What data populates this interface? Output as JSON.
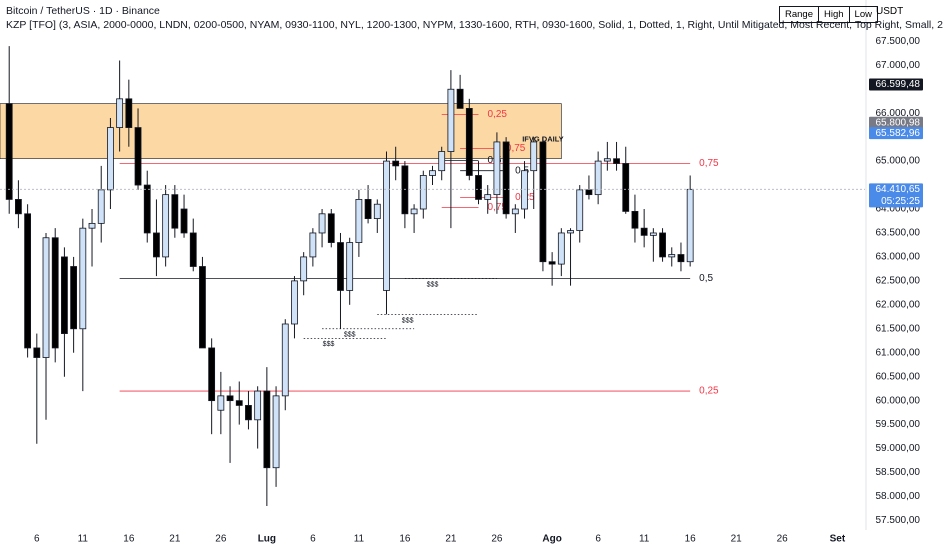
{
  "chart_data": {
    "type": "candlestick",
    "title": "Bitcoin / TetherUS · 1D · Binance",
    "subtitle": "KZP [TFO] (3, ASIA, 2000-0000, LNDN, 0200-0500, NYAM, 0930-1100, NYL, 1200-1300, NYPM, 1330-1600, RTH, 0930-1600, Solid, 1, Dotted, 1, Right, Until Mitigated, Most Recent, Top Right, Small, 2",
    "controls": [
      "Range",
      "High",
      "Low"
    ],
    "currency": "USDT",
    "bull_color": "#cfe2f8",
    "bear_color": "#000000",
    "x": [
      "06-03",
      "06-04",
      "06-05",
      "06-06",
      "06-07",
      "06-08",
      "06-09",
      "06-10",
      "06-11",
      "06-12",
      "06-13",
      "06-14",
      "06-15",
      "06-16",
      "06-17",
      "06-18",
      "06-19",
      "06-20",
      "06-21",
      "06-22",
      "06-23",
      "06-24",
      "06-25",
      "06-26",
      "06-27",
      "06-28",
      "06-29",
      "06-30",
      "07-01",
      "07-02",
      "07-03",
      "07-04",
      "07-05",
      "07-06",
      "07-07",
      "07-08",
      "07-09",
      "07-10",
      "07-11",
      "07-12",
      "07-13",
      "07-14",
      "07-15",
      "07-16",
      "07-17",
      "07-18",
      "07-19",
      "07-20",
      "07-21",
      "07-22",
      "07-23",
      "07-24",
      "07-25",
      "07-26",
      "07-27",
      "07-28",
      "07-29",
      "07-30",
      "07-31",
      "08-01",
      "08-02",
      "08-03",
      "08-04",
      "08-05",
      "08-06",
      "08-07",
      "08-08",
      "08-09",
      "08-10",
      "08-11",
      "08-12",
      "08-13",
      "08-14",
      "08-15",
      "08-16"
    ],
    "open": [
      66200,
      64200,
      63900,
      61100,
      60900,
      63400,
      63000,
      62800,
      61500,
      63600,
      63700,
      64400,
      65700,
      66300,
      65700,
      64500,
      63500,
      63000,
      64300,
      64000,
      63500,
      62800,
      61100,
      59800,
      60100,
      60000,
      59900,
      59600,
      60200,
      58600,
      60100,
      61600,
      62500,
      63000,
      63500,
      63900,
      63300,
      62300,
      63300,
      64200,
      63800,
      62300,
      65000,
      64900,
      63900,
      64000,
      64700,
      64800,
      65200,
      66500,
      66100,
      64700,
      64200,
      64300,
      65400,
      63900,
      64000,
      64800,
      65400,
      62900,
      62850,
      63500,
      63550,
      64400,
      64300,
      65000,
      65050,
      64950,
      63950,
      63600,
      63450,
      63500,
      63000,
      63050,
      62900
    ],
    "high": [
      67400,
      64600,
      64100,
      61400,
      63500,
      63600,
      63200,
      63000,
      63800,
      64000,
      64900,
      65900,
      67100,
      66700,
      66100,
      64800,
      64200,
      64500,
      64500,
      64300,
      63800,
      63000,
      61300,
      60600,
      60300,
      60400,
      60200,
      60300,
      60700,
      60300,
      61700,
      62600,
      63100,
      63600,
      64000,
      64000,
      63500,
      63400,
      64400,
      64500,
      64200,
      65200,
      65300,
      65000,
      64100,
      64800,
      64900,
      65300,
      66900,
      66800,
      66300,
      65000,
      64500,
      65600,
      65500,
      64100,
      65000,
      65500,
      65500,
      63100,
      63600,
      63600,
      64500,
      64700,
      65200,
      65400,
      65400,
      65300,
      64300,
      64000,
      63600,
      63600,
      63200,
      63300,
      64700
    ],
    "low": [
      63900,
      63600,
      60900,
      59100,
      59600,
      60800,
      60500,
      61000,
      60200,
      62800,
      63300,
      64000,
      65200,
      65300,
      64400,
      63300,
      62600,
      62800,
      63400,
      63400,
      62700,
      61100,
      59300,
      59300,
      58700,
      59500,
      59400,
      59000,
      57800,
      58200,
      59800,
      61300,
      62200,
      62800,
      63200,
      63200,
      61500,
      62000,
      63000,
      63700,
      63500,
      61800,
      64600,
      63600,
      63500,
      63800,
      64500,
      64600,
      63600,
      66100,
      64600,
      64100,
      63900,
      63900,
      63800,
      63500,
      63800,
      64000,
      62700,
      62400,
      62600,
      62400,
      63300,
      64200,
      64100,
      64800,
      64800,
      63900,
      63300,
      63200,
      62900,
      62900,
      62800,
      62700,
      62800
    ],
    "close": [
      64200,
      63900,
      61100,
      60900,
      63400,
      61100,
      61400,
      61500,
      63600,
      63700,
      64400,
      65700,
      66300,
      65700,
      64500,
      63500,
      63000,
      64300,
      63600,
      63500,
      62800,
      61100,
      60000,
      60100,
      60000,
      59900,
      59600,
      60200,
      58600,
      60100,
      61600,
      62500,
      63000,
      63500,
      63900,
      63300,
      62300,
      63300,
      64200,
      63800,
      64100,
      65000,
      64900,
      63900,
      64000,
      64700,
      64800,
      65200,
      66500,
      66100,
      64700,
      64200,
      64300,
      65400,
      63900,
      64000,
      64800,
      65400,
      62900,
      62850,
      63500,
      63550,
      64400,
      64300,
      65000,
      65050,
      64950,
      63950,
      63600,
      63450,
      63500,
      63000,
      63050,
      62900,
      64410.65
    ],
    "xlim": [
      "06-02",
      "09-04"
    ],
    "xticks": [
      {
        "value": "06-06",
        "label": "6"
      },
      {
        "value": "06-11",
        "label": "11"
      },
      {
        "value": "06-16",
        "label": "16"
      },
      {
        "value": "06-21",
        "label": "21"
      },
      {
        "value": "06-26",
        "label": "26"
      },
      {
        "value": "07-01",
        "label": "Lug"
      },
      {
        "value": "07-06",
        "label": "6"
      },
      {
        "value": "07-11",
        "label": "11"
      },
      {
        "value": "07-16",
        "label": "16"
      },
      {
        "value": "07-21",
        "label": "21"
      },
      {
        "value": "07-26",
        "label": "26"
      },
      {
        "value": "08-01",
        "label": "Ago"
      },
      {
        "value": "08-06",
        "label": "6"
      },
      {
        "value": "08-11",
        "label": "11"
      },
      {
        "value": "08-16",
        "label": "16"
      },
      {
        "value": "08-21",
        "label": "21"
      },
      {
        "value": "08-26",
        "label": "26"
      },
      {
        "value": "09-01",
        "label": "Set"
      }
    ],
    "ylim": [
      57300,
      68300
    ],
    "yticks": [
      {
        "value": 67500,
        "label": "67.500,00"
      },
      {
        "value": 67000,
        "label": "67.000,00"
      },
      {
        "value": 66000,
        "label": "66.000,00"
      },
      {
        "value": 65000,
        "label": "65.000,00"
      },
      {
        "value": 64000,
        "label": "64.000,00"
      },
      {
        "value": 63500,
        "label": "63.500,00"
      },
      {
        "value": 63000,
        "label": "63.000,00"
      },
      {
        "value": 62500,
        "label": "62.500,00"
      },
      {
        "value": 62000,
        "label": "62.000,00"
      },
      {
        "value": 61500,
        "label": "61.500,00"
      },
      {
        "value": 61000,
        "label": "61.000,00"
      },
      {
        "value": 60500,
        "label": "60.500,00"
      },
      {
        "value": 60000,
        "label": "60.000,00"
      },
      {
        "value": 59500,
        "label": "59.500,00"
      },
      {
        "value": 59000,
        "label": "59.000,00"
      },
      {
        "value": 58500,
        "label": "58.500,00"
      },
      {
        "value": 58000,
        "label": "58.000,00"
      },
      {
        "value": 57500,
        "label": "57.500,00"
      }
    ],
    "zone": {
      "from": "06-02",
      "to": "08-02",
      "low": 65050,
      "high": 66200,
      "color": "#fcd9a4"
    },
    "levels": [
      {
        "value": 64950,
        "label": "0,75",
        "color": "#f23645",
        "from": "06-15",
        "to": "08-16"
      },
      {
        "value": 62550,
        "label": "0,5",
        "color": "#131722",
        "from": "06-15",
        "to": "08-16"
      },
      {
        "value": 60200,
        "label": "0,25",
        "color": "#f23645",
        "from": "06-15",
        "to": "08-16"
      },
      {
        "value": 65976,
        "label": "0,25",
        "color": "#f23645",
        "from": "07-20",
        "to": "07-24"
      },
      {
        "value": 65266,
        "label": "0,75",
        "color": "#f23645",
        "from": "07-22",
        "to": "07-26"
      },
      {
        "value": 65015,
        "label": "0,5",
        "color": "#131722",
        "from": "07-20",
        "to": "07-24"
      },
      {
        "value": 64800,
        "label": "0,5",
        "color": "#131722",
        "from": "07-22",
        "to": "07-27"
      },
      {
        "value": 64243,
        "label": "0,25",
        "color": "#f23645",
        "from": "07-22",
        "to": "07-27"
      },
      {
        "value": 64034,
        "label": "0,75",
        "color": "#f23645",
        "from": "07-20",
        "to": "07-24"
      }
    ],
    "liquidity": [
      {
        "label": "$$$",
        "value": 62550,
        "from": "07-16",
        "to": "07-26"
      },
      {
        "label": "$$$",
        "value": 61800,
        "from": "07-13",
        "to": "07-24"
      },
      {
        "label": "$$$",
        "value": 61500,
        "from": "07-07",
        "to": "07-17"
      },
      {
        "label": "$$$",
        "value": 61300,
        "from": "07-05",
        "to": "07-14"
      }
    ],
    "annotations": [
      {
        "text": "IFVG DAILY",
        "x": "07-31",
        "value": 65450
      }
    ],
    "price_tags": [
      {
        "value": 66599.48,
        "label": "66.599,48",
        "color": "#131722"
      },
      {
        "value": 65800.98,
        "label": "65.800,98",
        "color": "#787b86"
      },
      {
        "value": 65582.96,
        "label": "65.582,96",
        "color": "#4a8ae8"
      },
      {
        "value": 64410.65,
        "label": "64.410,65",
        "color": "#4a8ae8",
        "countdown": "05:25:25"
      }
    ]
  }
}
